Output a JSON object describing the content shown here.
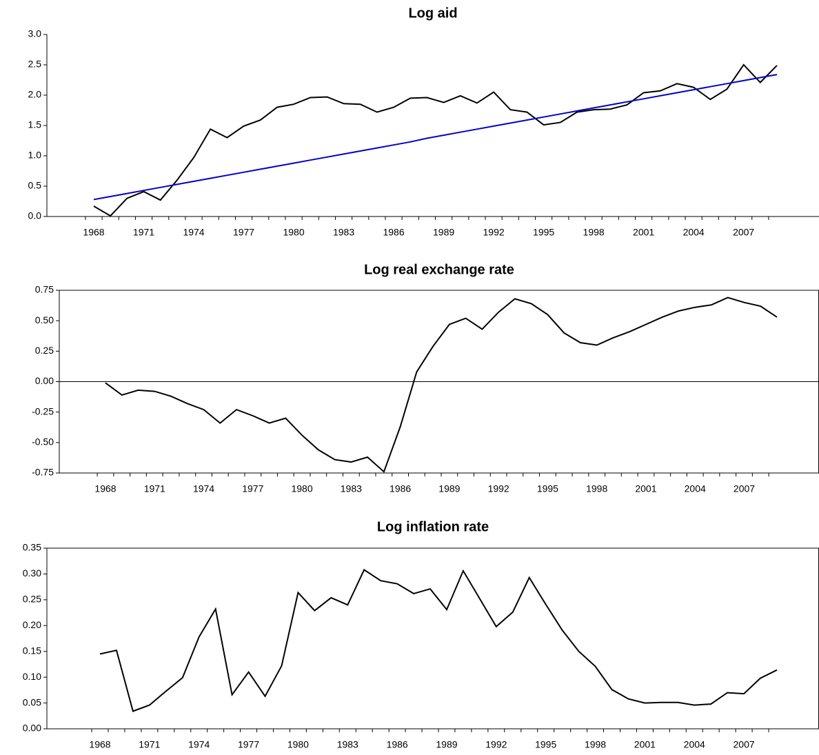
{
  "chart_data": [
    {
      "type": "line",
      "title": "Log aid",
      "box": false,
      "zero_line": false,
      "categories": [
        "1968",
        null,
        null,
        "1971",
        null,
        null,
        "1974",
        null,
        null,
        "1977",
        null,
        null,
        "1980",
        null,
        null,
        "1983",
        null,
        null,
        "1986",
        null,
        null,
        "1989",
        null,
        null,
        "1992",
        null,
        null,
        "1995",
        null,
        null,
        "1998",
        null,
        null,
        "2001",
        null,
        null,
        "2004",
        null,
        null,
        "2007",
        null,
        null
      ],
      "series": [
        {
          "color": "#000000",
          "values": [
            0.17,
            0.01,
            0.3,
            0.41,
            0.27,
            0.6,
            0.97,
            1.44,
            1.3,
            1.49,
            1.59,
            1.8,
            1.85,
            1.96,
            1.97,
            1.86,
            1.85,
            1.72,
            1.8,
            1.95,
            1.96,
            1.88,
            1.99,
            1.87,
            2.05,
            1.76,
            1.72,
            1.51,
            1.55,
            1.72,
            1.76,
            1.77,
            1.84,
            2.04,
            2.07,
            2.19,
            2.13,
            1.93,
            2.1,
            2.5,
            2.21,
            2.49
          ]
        },
        {
          "color": "#0000cc",
          "values": [
            0.28,
            0.33,
            0.38,
            0.43,
            0.48,
            0.53,
            0.58,
            0.63,
            0.68,
            0.73,
            0.78,
            0.83,
            0.88,
            0.93,
            0.98,
            1.03,
            1.08,
            1.13,
            1.18,
            1.23,
            1.29,
            1.34,
            1.39,
            1.44,
            1.49,
            1.54,
            1.59,
            1.64,
            1.69,
            1.74,
            1.79,
            1.84,
            1.89,
            1.94,
            1.99,
            2.04,
            2.09,
            2.14,
            2.19,
            2.24,
            2.29,
            2.34
          ]
        }
      ],
      "ylim": [
        0,
        3
      ],
      "yticks": [
        {
          "value": 0,
          "label": "0.0"
        },
        0.5,
        {
          "value": 1,
          "label": "1.0"
        },
        1.5,
        {
          "value": 2,
          "label": "2.0"
        },
        2.5,
        {
          "value": 3,
          "label": "3.0"
        }
      ]
    },
    {
      "type": "line",
      "title": "Log real exchange rate",
      "box": true,
      "zero_line": true,
      "categories": [
        "1968",
        null,
        null,
        "1971",
        null,
        null,
        "1974",
        null,
        null,
        "1977",
        null,
        null,
        "1980",
        null,
        null,
        "1983",
        null,
        null,
        "1986",
        null,
        null,
        "1989",
        null,
        null,
        "1992",
        null,
        null,
        "1995",
        null,
        null,
        "1998",
        null,
        null,
        "2001",
        null,
        null,
        "2004",
        null,
        null,
        "2007",
        null,
        null
      ],
      "series": [
        {
          "color": "#000000",
          "values": [
            -0.01,
            -0.11,
            -0.07,
            -0.08,
            -0.12,
            -0.18,
            -0.23,
            -0.34,
            -0.23,
            -0.28,
            -0.34,
            -0.3,
            -0.44,
            -0.56,
            -0.64,
            -0.66,
            -0.62,
            -0.74,
            -0.37,
            0.08,
            0.29,
            0.47,
            0.52,
            0.43,
            0.57,
            0.68,
            0.64,
            0.55,
            0.4,
            0.32,
            0.3,
            0.36,
            0.41,
            0.47,
            0.53,
            0.58,
            0.61,
            0.63,
            0.69,
            0.65,
            0.62,
            0.53
          ]
        }
      ],
      "ylim": [
        -0.75,
        0.75
      ],
      "yticks": [
        {
          "value": -0.75,
          "label": "-0.75"
        },
        {
          "value": -0.5,
          "label": "-0.50"
        },
        {
          "value": -0.25,
          "label": "-0.25"
        },
        {
          "value": 0,
          "label": "0.00"
        },
        0.25,
        {
          "value": 0.5,
          "label": "0.50"
        },
        0.75
      ]
    },
    {
      "type": "line",
      "title": "Log inflation rate",
      "box": true,
      "zero_line": false,
      "categories": [
        "1968",
        null,
        null,
        "1971",
        null,
        null,
        "1974",
        null,
        null,
        "1977",
        null,
        null,
        "1980",
        null,
        null,
        "1983",
        null,
        null,
        "1986",
        null,
        null,
        "1989",
        null,
        null,
        "1992",
        null,
        null,
        "1995",
        null,
        null,
        "1998",
        null,
        null,
        "2001",
        null,
        null,
        "2004",
        null,
        null,
        "2007",
        null,
        null
      ],
      "series": [
        {
          "color": "#000000",
          "values": [
            0.145,
            0.152,
            0.034,
            0.046,
            0.073,
            0.099,
            0.178,
            0.232,
            0.066,
            0.11,
            0.063,
            0.122,
            0.264,
            0.229,
            0.254,
            0.24,
            0.308,
            0.287,
            0.281,
            0.262,
            0.271,
            0.231,
            0.306,
            0.252,
            0.198,
            0.226,
            0.293,
            0.241,
            0.191,
            0.15,
            0.121,
            0.076,
            0.058,
            0.05,
            0.051,
            0.051,
            0.046,
            0.048,
            0.07,
            0.068,
            0.098,
            0.114
          ]
        }
      ],
      "ylim": [
        0,
        0.35
      ],
      "yticks": [
        {
          "value": 0,
          "label": "0.00"
        },
        0.05,
        {
          "value": 0.1,
          "label": "0.10"
        },
        0.15,
        {
          "value": 0.2,
          "label": "0.20"
        },
        0.25,
        {
          "value": 0.3,
          "label": "0.30"
        },
        0.35
      ]
    }
  ]
}
